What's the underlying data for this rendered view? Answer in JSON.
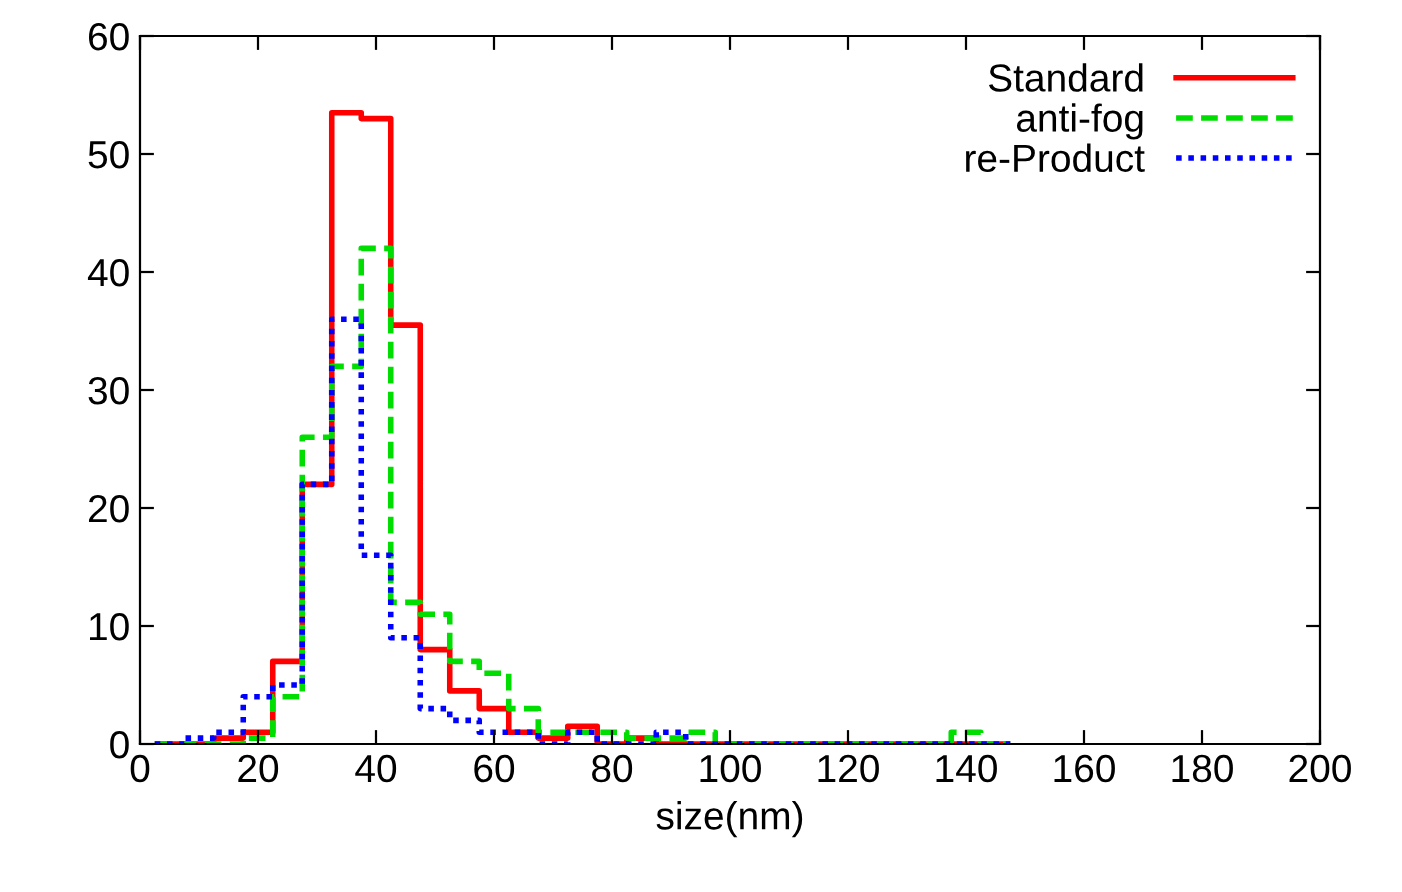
{
  "chart_data": {
    "type": "histogram",
    "xlabel": "size(nm)",
    "bins": [
      2.5,
      7.5,
      12.5,
      17.5,
      22.5,
      27.5,
      32.5,
      37.5,
      42.5,
      47.5,
      52.5,
      57.5,
      62.5,
      67.5,
      72.5,
      77.5,
      82.5,
      87.5,
      92.5,
      97.5,
      102.5,
      107.5,
      112.5,
      117.5,
      122.5,
      127.5,
      132.5,
      137.5,
      142.5,
      147.5
    ],
    "series": [
      {
        "name": "Standard",
        "color": "#ff0000",
        "line_style": "solid",
        "values": [
          0,
          0,
          0.5,
          1,
          7,
          22,
          53.5,
          53,
          35.5,
          8,
          4.5,
          3,
          1,
          0.5,
          1.5,
          0,
          0.5,
          0,
          0,
          0,
          0,
          0,
          0,
          0,
          0,
          0,
          0,
          0,
          0
        ]
      },
      {
        "name": "anti-fog",
        "color": "#00dd00",
        "line_style": "dashed",
        "values": [
          0,
          0,
          0,
          0.5,
          4,
          26,
          32,
          42,
          12,
          11,
          7,
          6,
          3,
          1,
          1,
          1,
          0.5,
          0.5,
          1,
          0,
          0,
          0,
          0,
          0,
          0,
          0,
          0,
          1,
          0
        ]
      },
      {
        "name": "re-Product",
        "color": "#0000ff",
        "line_style": "dotted",
        "values": [
          0,
          0.5,
          1,
          4,
          5,
          22,
          36,
          16,
          9,
          3,
          2,
          1,
          1,
          0,
          1,
          0,
          0,
          1,
          0,
          0,
          0,
          0,
          0,
          0,
          0,
          0,
          0,
          0,
          0
        ]
      }
    ],
    "xlim": [
      0,
      200
    ],
    "xticks": [
      0,
      20,
      40,
      60,
      80,
      100,
      120,
      140,
      160,
      180,
      200
    ],
    "ylim": [
      0,
      60
    ],
    "yticks": [
      0,
      10,
      20,
      30,
      40,
      50,
      60
    ],
    "grid": false,
    "legend": "top right"
  }
}
